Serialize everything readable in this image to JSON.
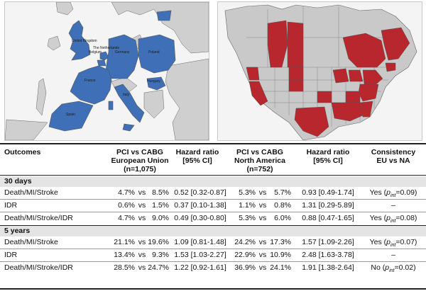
{
  "maps": {
    "europe": {
      "labels": [
        "United Kingdom",
        "The Netherlands",
        "Belgium",
        "Germany",
        "Poland",
        "France",
        "Hungary",
        "Italy",
        "Spain"
      ],
      "colors": {
        "highlight": "#3f6fb7",
        "land": "#cfcfcf",
        "sea": "#f4f4f4",
        "border": "#555555"
      }
    },
    "north_america": {
      "colors": {
        "highlight": "#b8272d",
        "land": "#c9c9c9",
        "sea": "#f4f4f4",
        "border": "#555555"
      }
    }
  },
  "table": {
    "headers": {
      "outcomes": "Outcomes",
      "pci_eu_l1": "PCI vs CABG",
      "pci_eu_l2": "European Union",
      "pci_eu_l3": "(n=1,075)",
      "hr_eu_l1": "Hazard ratio",
      "hr_eu_l2": "[95% CI]",
      "pci_na_l1": "PCI vs CABG",
      "pci_na_l2": "North America",
      "pci_na_l3": "(n=752)",
      "hr_na_l1": "Hazard ratio",
      "hr_na_l2": "[95% CI]",
      "cons_l1": "Consistency",
      "cons_l2": "EU vs NA"
    },
    "sections": [
      {
        "title": "30 days",
        "rows": [
          {
            "outcome": "Death/MI/Stroke",
            "eu_a": "4.7%",
            "eu_b": "8.5%",
            "eu_hr": "0.52 [0.32-0.87]",
            "na_a": "5.3%",
            "na_b": "5.7%",
            "na_hr": "0.93 [0.49-1.74]",
            "cons_pre": "Yes (",
            "cons_p": "p",
            "cons_sub": "int",
            "cons_post": "=0.09)",
            "cons_dash": ""
          },
          {
            "outcome": "IDR",
            "eu_a": "0.6%",
            "eu_b": "1.5%",
            "eu_hr": "0.37 [0.10-1.38]",
            "na_a": "1.1%",
            "na_b": "0.8%",
            "na_hr": "1.31 [0.29-5.89]",
            "cons_pre": "",
            "cons_p": "",
            "cons_sub": "",
            "cons_post": "",
            "cons_dash": "–"
          },
          {
            "outcome": "Death/MI/Stroke/IDR",
            "eu_a": "4.7%",
            "eu_b": "9.0%",
            "eu_hr": "0.49 [0.30-0.80]",
            "na_a": "5.3%",
            "na_b": "6.0%",
            "na_hr": "0.88 [0.47-1.65]",
            "cons_pre": "Yes (",
            "cons_p": "p",
            "cons_sub": "int",
            "cons_post": "=0.08)",
            "cons_dash": ""
          }
        ]
      },
      {
        "title": "5 years",
        "rows": [
          {
            "outcome": "Death/MI/Stroke",
            "eu_a": "21.1%",
            "eu_b": "19.6%",
            "eu_hr": "1.09 [0.81-1.48]",
            "na_a": "24.2%",
            "na_b": "17.3%",
            "na_hr": "1.57 [1.09-2.26]",
            "cons_pre": "Yes (",
            "cons_p": "p",
            "cons_sub": "int",
            "cons_post": "=0.07)",
            "cons_dash": ""
          },
          {
            "outcome": "IDR",
            "eu_a": "13.4%",
            "eu_b": "9.3%",
            "eu_hr": "1.53 [1.03-2.27]",
            "na_a": "22.9%",
            "na_b": "10.9%",
            "na_hr": "2.48 [1.63-3.78]",
            "cons_pre": "",
            "cons_p": "",
            "cons_sub": "",
            "cons_post": "",
            "cons_dash": "–"
          },
          {
            "outcome": "Death/MI/Stroke/IDR",
            "eu_a": "28.5%",
            "eu_b": "24.7%",
            "eu_hr": "1.22 [0.92-1.61]",
            "na_a": "36.9%",
            "na_b": "24.1%",
            "na_hr": "1.91 [1.38-2.64]",
            "cons_pre": "No (",
            "cons_p": "p",
            "cons_sub": "int",
            "cons_post": "=0.02)",
            "cons_dash": ""
          }
        ]
      }
    ],
    "vs": "vs"
  }
}
